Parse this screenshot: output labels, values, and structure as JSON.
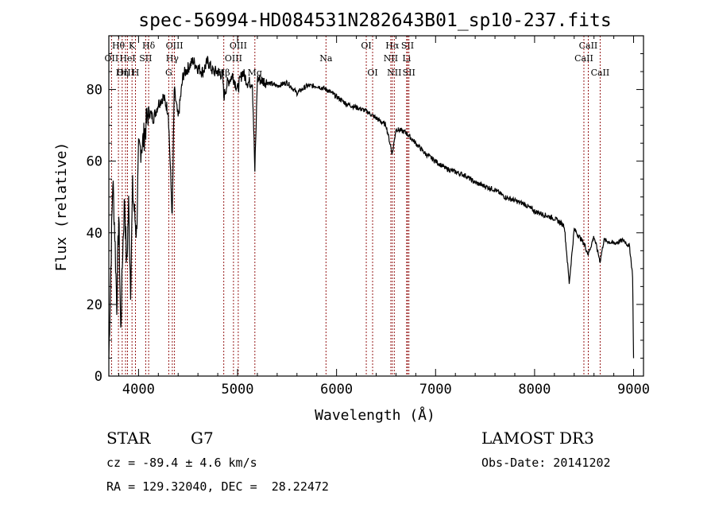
{
  "chart_data": {
    "type": "line",
    "title": "spec-56994-HD084531N282643B01_sp10-237.fits",
    "xlabel": "Wavelength (Å)",
    "ylabel": "Flux (relative)",
    "xlim": [
      3700,
      9100
    ],
    "ylim": [
      0,
      95
    ],
    "x_ticks": [
      4000,
      5000,
      6000,
      7000,
      8000,
      9000
    ],
    "y_ticks": [
      0,
      20,
      40,
      60,
      80
    ],
    "series": [
      {
        "name": "spectrum",
        "x": [
          3700,
          3720,
          3740,
          3760,
          3780,
          3800,
          3820,
          3840,
          3860,
          3880,
          3900,
          3920,
          3940,
          3960,
          3980,
          4000,
          4050,
          4100,
          4150,
          4200,
          4250,
          4300,
          4340,
          4360,
          4400,
          4450,
          4500,
          4550,
          4600,
          4650,
          4700,
          4750,
          4800,
          4850,
          4861,
          4900,
          4950,
          5000,
          5050,
          5100,
          5150,
          5175,
          5200,
          5300,
          5400,
          5500,
          5600,
          5700,
          5800,
          5900,
          6000,
          6100,
          6200,
          6300,
          6400,
          6500,
          6563,
          6600,
          6700,
          6800,
          6900,
          7000,
          7100,
          7200,
          7300,
          7400,
          7500,
          7600,
          7700,
          7800,
          7900,
          8000,
          8100,
          8200,
          8300,
          8350,
          8400,
          8498,
          8542,
          8600,
          8662,
          8700,
          8800,
          8900,
          8960,
          8990,
          9000
        ],
        "y": [
          5,
          30,
          55,
          40,
          20,
          45,
          12,
          35,
          50,
          30,
          48,
          25,
          52,
          45,
          40,
          62,
          66,
          74,
          72,
          76,
          78,
          74,
          44,
          80,
          72,
          84,
          86,
          88,
          86,
          85,
          88,
          85,
          85,
          84,
          78,
          82,
          84,
          80,
          85,
          82,
          82,
          57,
          83,
          82,
          81,
          82,
          79,
          81,
          81,
          80,
          78,
          76,
          75,
          74,
          72,
          70,
          62,
          69,
          68,
          65,
          62,
          60,
          58,
          57,
          56,
          54,
          53,
          52,
          50,
          49,
          48,
          46,
          45,
          44,
          42,
          26,
          41,
          37,
          34,
          39,
          32,
          38,
          37,
          38,
          36,
          28,
          5
        ]
      }
    ],
    "line_markers": [
      {
        "name": "Hθ",
        "x": 3797,
        "row": 1
      },
      {
        "name": "OII",
        "x": 3727,
        "row": 2
      },
      {
        "name": "OIII",
        "x": 3869,
        "row": 3
      },
      {
        "name": "K",
        "x": 3934,
        "row": 1
      },
      {
        "name": "HeI",
        "x": 3889,
        "row": 2
      },
      {
        "name": "Hη",
        "x": 3835,
        "row": 3
      },
      {
        "name": "Hδ",
        "x": 4102,
        "row": 1
      },
      {
        "name": "SII",
        "x": 4072,
        "row": 2
      },
      {
        "name": "H",
        "x": 3969,
        "row": 3
      },
      {
        "name": "OIII",
        "x": 4363,
        "row": 1
      },
      {
        "name": "Hγ",
        "x": 4341,
        "row": 2
      },
      {
        "name": "G",
        "x": 4305,
        "row": 3
      },
      {
        "name": "OIII",
        "x": 5007,
        "row": 1
      },
      {
        "name": "OIII",
        "x": 4959,
        "row": 2
      },
      {
        "name": "Hβ",
        "x": 4861,
        "row": 3
      },
      {
        "name": "Mg",
        "x": 5175,
        "row": 3
      },
      {
        "name": "Na",
        "x": 5893,
        "row": 2
      },
      {
        "name": "OI",
        "x": 6300,
        "row": 1
      },
      {
        "name": "OI",
        "x": 6364,
        "row": 3
      },
      {
        "name": "Hα",
        "x": 6563,
        "row": 1
      },
      {
        "name": "NII",
        "x": 6548,
        "row": 2
      },
      {
        "name": "NII",
        "x": 6583,
        "row": 3
      },
      {
        "name": "SII",
        "x": 6717,
        "row": 1
      },
      {
        "name": "Li",
        "x": 6708,
        "row": 2
      },
      {
        "name": "SII",
        "x": 6731,
        "row": 3
      },
      {
        "name": "CaII",
        "x": 8542,
        "row": 1
      },
      {
        "name": "CaII",
        "x": 8498,
        "row": 2
      },
      {
        "name": "CaII",
        "x": 8662,
        "row": 3
      }
    ]
  },
  "info": {
    "object_type": "STAR",
    "subclass": "G7",
    "survey": "LAMOST DR3",
    "redshift": "cz = -89.4 ± 4.6 km/s",
    "obs_date": "Obs-Date: 20141202",
    "coords": "RA = 129.32040, DEC =  28.22472"
  },
  "colors": {
    "background": "#ffffff",
    "ink": "#000000",
    "marker": "#8b0000"
  }
}
